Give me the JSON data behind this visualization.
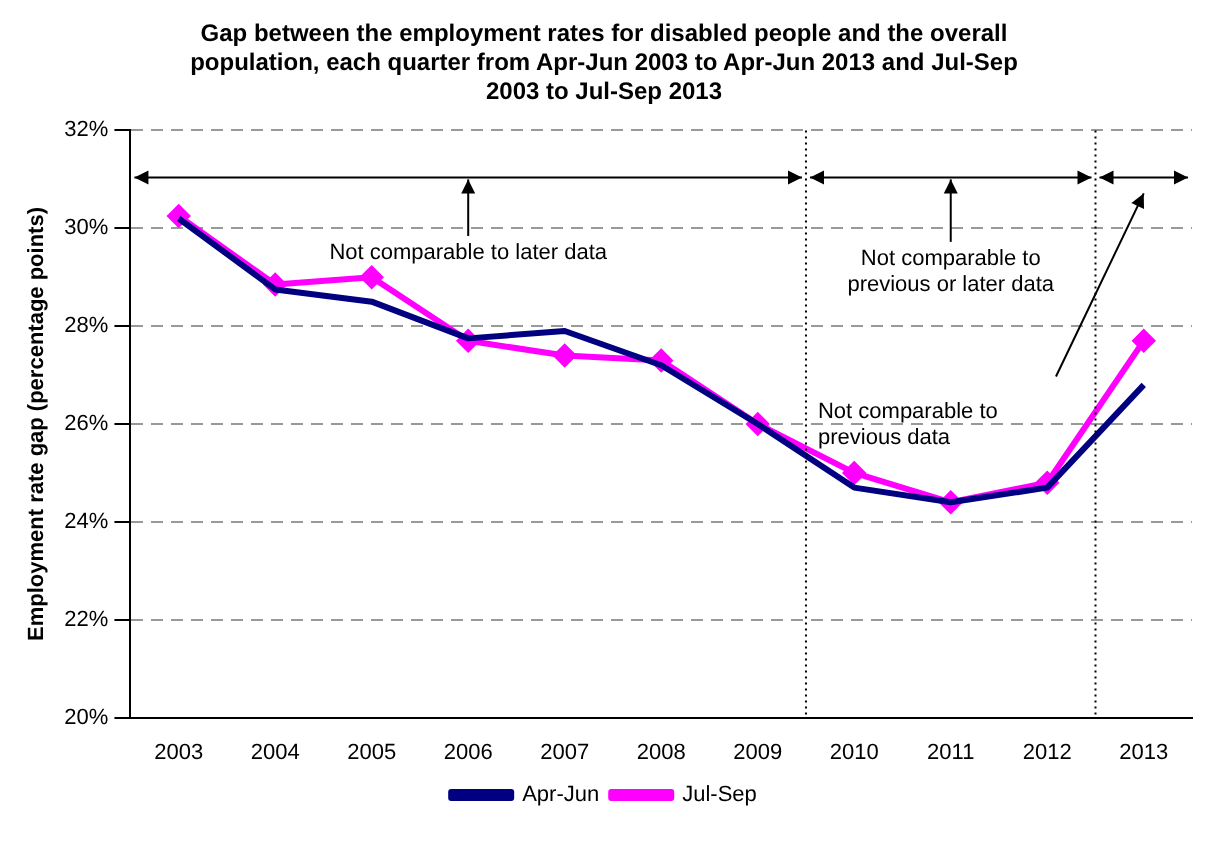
{
  "chart_data": {
    "type": "line",
    "title": "Gap between the employment rates for disabled people and the overall population, each quarter from Apr-Jun 2003 to Apr-Jun 2013 and Jul-Sep 2003 to Jul-Sep 2013",
    "ylabel": "Employment rate gap (percentage points)",
    "x": [
      2003,
      2004,
      2005,
      2006,
      2007,
      2008,
      2009,
      2010,
      2011,
      2012,
      2013
    ],
    "xlim": [
      2002.5,
      2013.5
    ],
    "xticks": [
      2003,
      2004,
      2005,
      2006,
      2007,
      2008,
      2009,
      2010,
      2011,
      2012,
      2013
    ],
    "ylim": [
      20,
      32
    ],
    "yticks": [
      {
        "value": 20,
        "label": "20%"
      },
      {
        "value": 22,
        "label": "22%"
      },
      {
        "value": 24,
        "label": "24%"
      },
      {
        "value": 26,
        "label": "26%"
      },
      {
        "value": 28,
        "label": "28%"
      },
      {
        "value": 30,
        "label": "30%"
      },
      {
        "value": 32,
        "label": "32%"
      }
    ],
    "series": [
      {
        "name": "Apr-Jun",
        "color": "#000080",
        "marker": "none",
        "values": [
          30.2,
          28.75,
          28.5,
          27.75,
          27.9,
          27.2,
          26.0,
          24.7,
          24.4,
          24.7,
          26.8
        ]
      },
      {
        "name": "Jul-Sep",
        "color": "#ff00ff",
        "marker": "diamond",
        "values": [
          30.25,
          28.85,
          29.0,
          27.7,
          27.4,
          27.3,
          26.0,
          25.0,
          24.4,
          24.8,
          27.7
        ]
      }
    ],
    "ref_lines": [
      {
        "axis": "x",
        "value": 2009.5,
        "line_style": "dotted",
        "color": "#000000"
      },
      {
        "axis": "x",
        "value": 2012.5,
        "line_style": "dotted",
        "color": "#000000"
      }
    ],
    "annotations": [
      "Not comparable to later data",
      "Not comparable to\nprevious or later data",
      "Not comparable to\nprevious data"
    ],
    "grid": "y",
    "legend": "bottom",
    "line_style": "solid"
  }
}
